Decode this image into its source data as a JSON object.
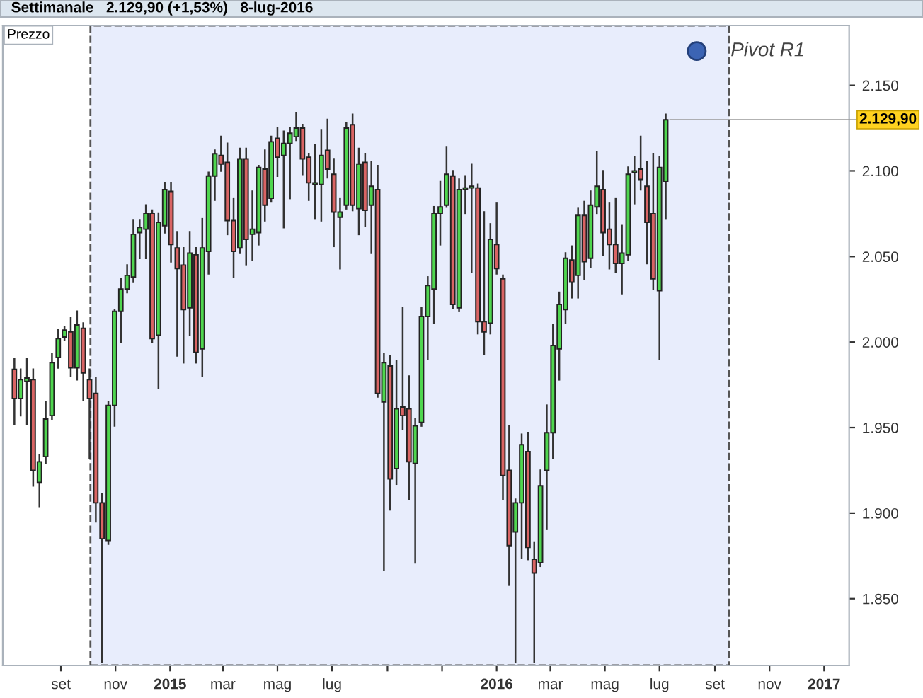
{
  "chart_data": {
    "type": "candlestick",
    "title": "Settimanale   2.129,90 (+1,53%)   8-lug-2016",
    "annotations": [
      "Prezzo",
      {
        "text": "2.129,90",
        "x": "2016-07-08",
        "y": 2129.9
      }
    ],
    "x": [
      "2014-07-11",
      "2014-07-18",
      "2014-07-25",
      "2014-08-01",
      "2014-08-08",
      "2014-08-15",
      "2014-08-22",
      "2014-08-29",
      "2014-09-05",
      "2014-09-12",
      "2014-09-19",
      "2014-09-26",
      "2014-10-03",
      "2014-10-10",
      "2014-10-17",
      "2014-10-24",
      "2014-10-31",
      "2014-11-07",
      "2014-11-14",
      "2014-11-21",
      "2014-11-28",
      "2014-12-05",
      "2014-12-12",
      "2014-12-19",
      "2014-12-26",
      "2015-01-02",
      "2015-01-09",
      "2015-01-16",
      "2015-01-23",
      "2015-01-30",
      "2015-02-06",
      "2015-02-13",
      "2015-02-20",
      "2015-02-27",
      "2015-03-06",
      "2015-03-13",
      "2015-03-20",
      "2015-03-27",
      "2015-04-03",
      "2015-04-10",
      "2015-04-17",
      "2015-04-24",
      "2015-05-01",
      "2015-05-08",
      "2015-05-15",
      "2015-05-22",
      "2015-05-29",
      "2015-06-05",
      "2015-06-12",
      "2015-06-19",
      "2015-06-26",
      "2015-07-03",
      "2015-07-10",
      "2015-07-17",
      "2015-07-24",
      "2015-07-31",
      "2015-08-07",
      "2015-08-14",
      "2015-08-21",
      "2015-08-28",
      "2015-09-04",
      "2015-09-11",
      "2015-09-18",
      "2015-09-25",
      "2015-10-02",
      "2015-10-09",
      "2015-10-16",
      "2015-10-23",
      "2015-10-30",
      "2015-11-06",
      "2015-11-13",
      "2015-11-20",
      "2015-11-27",
      "2015-12-04",
      "2015-12-11",
      "2015-12-18",
      "2015-12-25",
      "2016-01-01",
      "2016-01-08",
      "2016-01-15",
      "2016-01-22",
      "2016-01-29",
      "2016-02-05",
      "2016-02-12",
      "2016-02-19",
      "2016-02-26",
      "2016-03-04",
      "2016-03-11",
      "2016-03-18",
      "2016-03-25",
      "2016-04-01",
      "2016-04-08",
      "2016-04-15",
      "2016-04-22",
      "2016-04-29",
      "2016-05-06",
      "2016-05-13",
      "2016-05-20",
      "2016-05-27",
      "2016-06-03",
      "2016-06-10",
      "2016-06-17",
      "2016-06-24",
      "2016-07-01",
      "2016-07-08"
    ],
    "ohlc": [
      [
        1984,
        1990,
        1952,
        1967
      ],
      [
        1967,
        1984,
        1957,
        1978
      ],
      [
        1977,
        1990,
        1952,
        1979
      ],
      [
        1978,
        1984,
        1916,
        1925
      ],
      [
        1918,
        1934,
        1904,
        1930
      ],
      [
        1933,
        1965,
        1929,
        1955
      ],
      [
        1957,
        1993,
        1955,
        1988
      ],
      [
        1991,
        2007,
        1985,
        2002
      ],
      [
        2003,
        2009,
        2001,
        2007
      ],
      [
        2006,
        2014,
        1980,
        1985
      ],
      [
        1985,
        2018,
        1978,
        2010
      ],
      [
        2008,
        2011,
        1966,
        1982
      ],
      [
        1978,
        1984,
        1932,
        1967
      ],
      [
        1970,
        1979,
        1895,
        1906
      ],
      [
        1906,
        1911,
        1813,
        1885
      ],
      [
        1884,
        1965,
        1882,
        1963
      ],
      [
        1963,
        2019,
        1951,
        2018
      ],
      [
        2018,
        2037,
        2000,
        2031
      ],
      [
        2031,
        2045,
        2029,
        2039
      ],
      [
        2038,
        2071,
        2035,
        2063
      ],
      [
        2064,
        2071,
        2049,
        2067
      ],
      [
        2066,
        2080,
        2049,
        2075
      ],
      [
        2075,
        2077,
        2000,
        2002
      ],
      [
        2004,
        2075,
        1973,
        2070
      ],
      [
        2068,
        2093,
        2064,
        2089
      ],
      [
        2088,
        2093,
        2047,
        2057
      ],
      [
        2055,
        2064,
        1992,
        2043
      ],
      [
        2045,
        2055,
        1988,
        2019
      ],
      [
        2020,
        2064,
        2004,
        2052
      ],
      [
        2051,
        2055,
        1988,
        1994
      ],
      [
        1996,
        2072,
        1980,
        2055
      ],
      [
        2053,
        2099,
        2040,
        2097
      ],
      [
        2097,
        2112,
        2083,
        2110
      ],
      [
        2109,
        2120,
        2100,
        2104
      ],
      [
        2105,
        2116,
        2063,
        2071
      ],
      [
        2071,
        2084,
        2038,
        2053
      ],
      [
        2055,
        2113,
        2052,
        2107
      ],
      [
        2107,
        2113,
        2045,
        2060
      ],
      [
        2063,
        2088,
        2048,
        2066
      ],
      [
        2064,
        2103,
        2057,
        2102
      ],
      [
        2101,
        2112,
        2071,
        2080
      ],
      [
        2084,
        2120,
        2082,
        2117
      ],
      [
        2119,
        2125,
        2097,
        2108
      ],
      [
        2109,
        2123,
        2067,
        2116
      ],
      [
        2116,
        2125,
        2084,
        2122
      ],
      [
        2120,
        2134,
        2118,
        2125
      ],
      [
        2125,
        2127,
        2098,
        2107
      ],
      [
        2108,
        2110,
        2083,
        2093
      ],
      [
        2092,
        2115,
        2072,
        2093
      ],
      [
        2092,
        2124,
        2071,
        2109
      ],
      [
        2112,
        2130,
        2096,
        2101
      ],
      [
        2098,
        2107,
        2056,
        2076
      ],
      [
        2073,
        2084,
        2043,
        2076
      ],
      [
        2080,
        2128,
        2078,
        2125
      ],
      [
        2127,
        2133,
        2077,
        2080
      ],
      [
        2078,
        2113,
        2063,
        2104
      ],
      [
        2105,
        2110,
        2068,
        2077
      ],
      [
        2080,
        2105,
        2052,
        2091
      ],
      [
        2089,
        2103,
        1968,
        1970
      ],
      [
        1965,
        1993,
        1867,
        1988
      ],
      [
        1986,
        1992,
        1902,
        1920
      ],
      [
        1926,
        1989,
        1917,
        1961
      ],
      [
        1962,
        2020,
        1949,
        1957
      ],
      [
        1961,
        1980,
        1908,
        1930
      ],
      [
        1929,
        1955,
        1871,
        1951
      ],
      [
        1953,
        2020,
        1951,
        2015
      ],
      [
        2015,
        2038,
        1990,
        2033
      ],
      [
        2031,
        2079,
        2011,
        2075
      ],
      [
        2075,
        2094,
        2057,
        2079
      ],
      [
        2080,
        2114,
        2079,
        2098
      ],
      [
        2097,
        2100,
        2020,
        2022
      ],
      [
        2020,
        2095,
        2018,
        2089
      ],
      [
        2089,
        2097,
        2075,
        2090
      ],
      [
        2090,
        2104,
        2041,
        2091
      ],
      [
        2090,
        2092,
        2005,
        2012
      ],
      [
        2012,
        2076,
        1993,
        2006
      ],
      [
        2011,
        2069,
        2005,
        2060
      ],
      [
        2057,
        2081,
        2040,
        2043
      ],
      [
        2037,
        2039,
        1908,
        1922
      ],
      [
        1925,
        1951,
        1858,
        1881
      ],
      [
        1889,
        1908,
        1813,
        1906
      ],
      [
        1906,
        1946,
        1874,
        1940
      ],
      [
        1936,
        1947,
        1873,
        1880
      ],
      [
        1873,
        1883,
        1813,
        1865
      ],
      [
        1871,
        1925,
        1869,
        1916
      ],
      [
        1925,
        1963,
        1891,
        1947
      ],
      [
        1947,
        2010,
        1932,
        1998
      ],
      [
        1996,
        2029,
        1978,
        2022
      ],
      [
        2019,
        2052,
        2011,
        2049
      ],
      [
        2048,
        2056,
        2026,
        2035
      ],
      [
        2039,
        2078,
        2026,
        2074
      ],
      [
        2074,
        2082,
        2037,
        2047
      ],
      [
        2049,
        2088,
        2044,
        2080
      ],
      [
        2079,
        2111,
        2075,
        2091
      ],
      [
        2089,
        2100,
        2051,
        2064
      ],
      [
        2066,
        2081,
        2043,
        2057
      ],
      [
        2057,
        2084,
        2041,
        2046
      ],
      [
        2046,
        2068,
        2028,
        2052
      ],
      [
        2051,
        2102,
        2048,
        2098
      ],
      [
        2099,
        2108,
        2081,
        2100
      ],
      [
        2101,
        2120,
        2089,
        2095
      ],
      [
        2091,
        2105,
        2046,
        2070
      ],
      [
        2075,
        2110,
        2031,
        2037
      ],
      [
        2030,
        2108,
        1990,
        2102
      ],
      [
        2094,
        2133,
        2072,
        2129.9
      ]
    ],
    "colors": [
      "#d96464",
      "#4fd64f",
      "#4fd64f",
      "#d96464",
      "#4fd64f",
      "#4fd64f",
      "#4fd64f",
      "#4fd64f",
      "#4fd64f",
      "#d96464",
      "#4fd64f",
      "#d96464",
      "#d96464",
      "#d96464",
      "#d96464",
      "#4fd64f",
      "#4fd64f",
      "#4fd64f",
      "#4fd64f",
      "#4fd64f",
      "#4fd64f",
      "#4fd64f",
      "#d96464",
      "#4fd64f",
      "#4fd64f",
      "#d96464",
      "#d96464",
      "#d96464",
      "#4fd64f",
      "#d96464",
      "#4fd64f",
      "#4fd64f",
      "#4fd64f",
      "#d96464",
      "#d96464",
      "#d96464",
      "#4fd64f",
      "#d96464",
      "#4fd64f",
      "#4fd64f",
      "#d96464",
      "#4fd64f",
      "#d96464",
      "#4fd64f",
      "#4fd64f",
      "#4fd64f",
      "#d96464",
      "#d96464",
      "#4fd64f",
      "#4fd64f",
      "#d96464",
      "#d96464",
      "#4fd64f",
      "#4fd64f",
      "#d96464",
      "#4fd64f",
      "#d96464",
      "#4fd64f",
      "#d96464",
      "#4fd64f",
      "#d96464",
      "#4fd64f",
      "#d96464",
      "#d96464",
      "#4fd64f",
      "#4fd64f",
      "#4fd64f",
      "#4fd64f",
      "#4fd64f",
      "#4fd64f",
      "#d96464",
      "#4fd64f",
      "#4fd64f",
      "#4fd64f",
      "#d96464",
      "#d96464",
      "#4fd64f",
      "#d96464",
      "#d96464",
      "#d96464",
      "#4fd64f",
      "#4fd64f",
      "#d96464",
      "#d96464",
      "#4fd64f",
      "#4fd64f",
      "#4fd64f",
      "#4fd64f",
      "#4fd64f",
      "#d96464",
      "#4fd64f",
      "#d96464",
      "#4fd64f",
      "#4fd64f",
      "#d96464",
      "#d96464",
      "#d96464",
      "#4fd64f",
      "#4fd64f",
      "#4fd64f",
      "#d96464",
      "#d96464",
      "#d96464",
      "#4fd64f",
      "#4fd64f"
    ],
    "bands": [
      {
        "axis": "x",
        "from": "2014-10-04",
        "to": "2016-09-17",
        "label": "Pivot R1",
        "color": "#e8edfc"
      }
    ],
    "xlim": [
      "2014-06-28",
      "2017-01-29"
    ],
    "xticks": [
      {
        "value": "2014-09-01",
        "label": "set"
      },
      {
        "value": "2014-11-01",
        "label": "nov"
      },
      {
        "value": "2015-01-01",
        "label": "2015"
      },
      {
        "value": "2015-03-01",
        "label": "mar"
      },
      {
        "value": "2015-05-01",
        "label": "mag"
      },
      {
        "value": "2015-07-01",
        "label": "lug"
      },
      {
        "value": "2015-09-01",
        "label": null
      },
      {
        "value": "2015-11-01",
        "label": null
      },
      {
        "value": "2016-01-01",
        "label": "2016"
      },
      {
        "value": "2016-03-01",
        "label": "mar"
      },
      {
        "value": "2016-05-01",
        "label": "mag"
      },
      {
        "value": "2016-07-01",
        "label": "lug"
      },
      {
        "value": "2016-09-01",
        "label": "set"
      },
      {
        "value": "2016-11-01",
        "label": "nov"
      },
      {
        "value": "2017-01-01",
        "label": "2017"
      }
    ],
    "ylim": [
      1811,
      2185
    ],
    "yticks": [
      {
        "value": 1850,
        "label": "1.850"
      },
      {
        "value": 1900,
        "label": "1.900"
      },
      {
        "value": 1950,
        "label": "1.950"
      },
      {
        "value": 2000,
        "label": "2.000"
      },
      {
        "value": 2050,
        "label": "2.050"
      },
      {
        "value": 2100,
        "label": "2.100"
      },
      {
        "value": 2150,
        "label": "2.150"
      }
    ],
    "grid": false,
    "legend": "top right"
  }
}
